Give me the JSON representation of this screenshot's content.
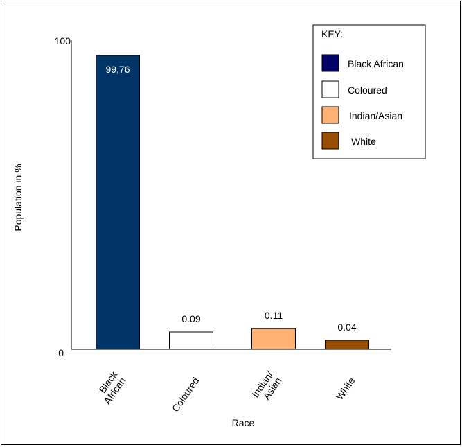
{
  "chart_data": {
    "type": "bar",
    "title": "",
    "xlabel": "Race",
    "ylabel": "Population in %",
    "ylim": [
      0,
      100
    ],
    "y_ticks": [
      "0",
      "100"
    ],
    "categories": [
      {
        "lines": [
          "Black",
          "African"
        ]
      },
      {
        "lines": [
          "Coloured"
        ]
      },
      {
        "lines": [
          "Indian/",
          "Asian"
        ]
      },
      {
        "lines": [
          "White"
        ]
      }
    ],
    "values": [
      99.76,
      0.09,
      0.11,
      0.04
    ],
    "value_labels": [
      "99,76",
      "0.09",
      "0.11",
      "0.04"
    ],
    "bar_colors": [
      "#003366",
      "#ffffff",
      "#ffb273",
      "#994d00"
    ],
    "value_label_inside": [
      true,
      false,
      false,
      false
    ],
    "grid": false,
    "legend": {
      "title": "KEY:",
      "placement": "top-right",
      "entries": [
        {
          "label": "Black African",
          "color": "#000066"
        },
        {
          "label": "Coloured",
          "color": "#ffffff"
        },
        {
          "label": "Indian/Asian",
          "color": "#ffb273"
        },
        {
          "label": "White",
          "color": "#994d00"
        }
      ]
    }
  }
}
